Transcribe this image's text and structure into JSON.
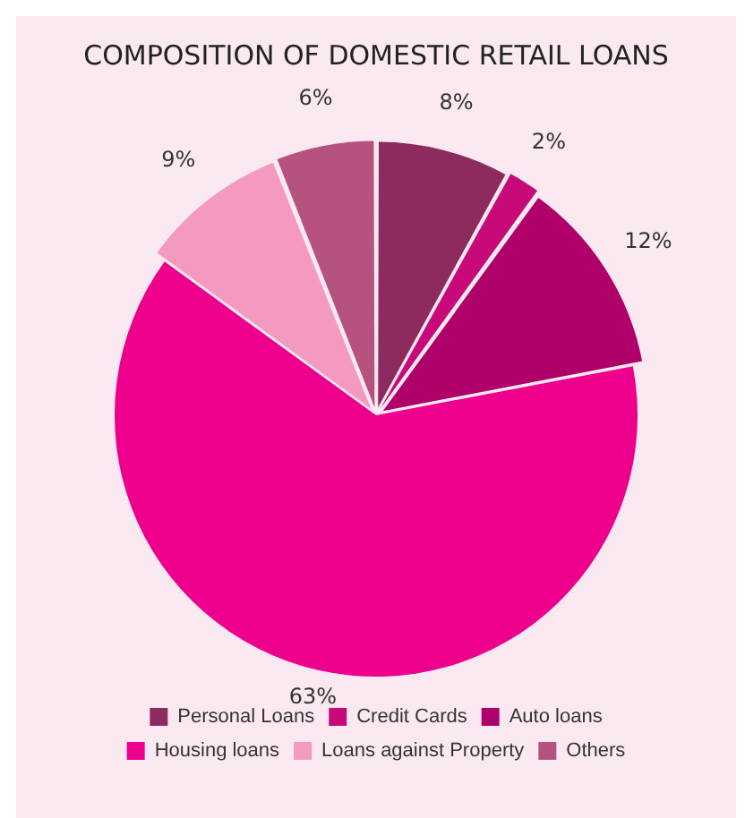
{
  "chart_data": {
    "type": "pie",
    "title": "COMPOSITION OF DOMESTIC RETAIL LOANS",
    "categories": [
      "Personal Loans",
      "Credit Cards",
      "Auto loans",
      "Housing loans",
      "Loans against Property",
      "Others"
    ],
    "values": [
      8,
      2,
      12,
      63,
      9,
      6
    ],
    "colors": [
      "#8e2b5e",
      "#c8097a",
      "#b0006a",
      "#ec008c",
      "#f49ac1",
      "#b5527f"
    ],
    "value_labels": [
      "8%",
      "2%",
      "12%",
      "63%",
      "9%",
      "6%"
    ],
    "legend": "bottom"
  }
}
